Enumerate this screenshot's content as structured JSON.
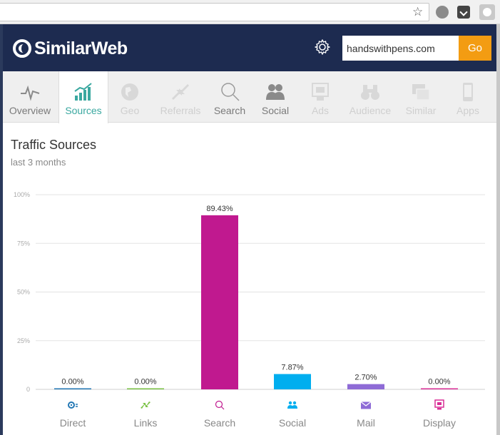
{
  "browser": {
    "star_glyph": "☆",
    "extension_icons": [
      "globe-icon",
      "pocket-icon",
      "similarweb-extension-icon"
    ]
  },
  "header": {
    "brand": "SimilarWeb",
    "brand_color": "#1d2b50",
    "settings_icon": "gear-icon",
    "search": {
      "value": "handswithpens.com",
      "placeholder": ""
    },
    "go_label": "Go",
    "go_color": "#f39c12"
  },
  "tabs": [
    {
      "label": "Overview",
      "icon": "heartbeat-icon",
      "state": "normal"
    },
    {
      "label": "Sources",
      "icon": "bar-chart-icon",
      "state": "active"
    },
    {
      "label": "Geo",
      "icon": "globe-icon",
      "state": "disabled"
    },
    {
      "label": "Referrals",
      "icon": "arrows-icon",
      "state": "disabled"
    },
    {
      "label": "Search",
      "icon": "magnifier-icon",
      "state": "normal"
    },
    {
      "label": "Social",
      "icon": "people-icon",
      "state": "normal"
    },
    {
      "label": "Ads",
      "icon": "ads-icon",
      "state": "disabled"
    },
    {
      "label": "Audience",
      "icon": "binoculars-icon",
      "state": "disabled"
    },
    {
      "label": "Similar",
      "icon": "similar-icon",
      "state": "disabled"
    },
    {
      "label": "Apps",
      "icon": "phone-icon",
      "state": "disabled"
    }
  ],
  "main": {
    "title": "Traffic Sources",
    "subtitle": "last 3 months"
  },
  "chart_data": {
    "type": "bar",
    "title": "",
    "categories": [
      "Direct",
      "Links",
      "Search",
      "Social",
      "Mail",
      "Display"
    ],
    "values": [
      0.0,
      0.0,
      89.43,
      7.87,
      2.7,
      0.0
    ],
    "value_labels": [
      "0.00%",
      "0.00%",
      "89.43%",
      "7.87%",
      "2.70%",
      "0.00%"
    ],
    "colors": [
      "#2277b4",
      "#79c143",
      "#c0198f",
      "#00aeef",
      "#8e6bd6",
      "#d92e96"
    ],
    "category_icons": [
      "direct-icon",
      "links-icon",
      "search-icon",
      "social-icon",
      "mail-icon",
      "display-icon"
    ],
    "yticks": [
      "0",
      "25%",
      "50%",
      "75%",
      "100%"
    ],
    "ylim": [
      0,
      100
    ],
    "grid": true,
    "xlabel": "",
    "ylabel": ""
  }
}
